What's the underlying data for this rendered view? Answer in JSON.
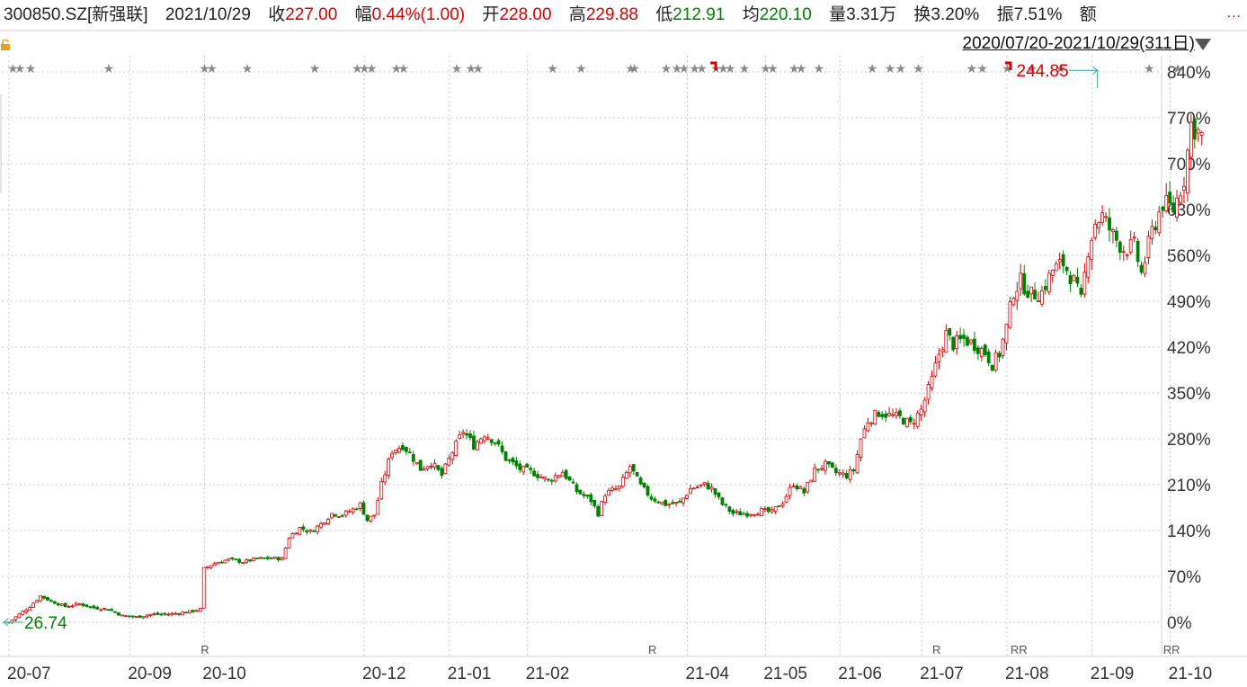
{
  "header": {
    "code": "300850.SZ[新强联]",
    "date": "2021/10/29",
    "close_label": "收",
    "close_value": "227.00",
    "change_label": "幅",
    "change_value": "0.44%(1.00)",
    "open_label": "开",
    "open_value": "228.00",
    "high_label": "高",
    "high_value": "229.88",
    "low_label": "低",
    "low_value": "212.91",
    "avg_label": "均",
    "avg_value": "220.10",
    "volume_label": "量",
    "volume_value": "3.31万",
    "turnover_label": "换",
    "turnover_value": "3.20%",
    "amplitude_label": "振",
    "amplitude_value": "7.51%",
    "amount_label": "额",
    "range": "2020/07/20-2021/10/29(311日)",
    "more_dots": "..."
  },
  "colors": {
    "up": "#d40000",
    "down": "#008000",
    "grid": "#c8c8c8",
    "star": "#8a8a8a"
  },
  "chart_data": {
    "type": "candlestick",
    "y_axis_labels": [
      "840%",
      "770%",
      "700%",
      "630%",
      "560%",
      "490%",
      "420%",
      "350%",
      "280%",
      "210%",
      "140%",
      "70%",
      "0%"
    ],
    "y_axis_values": [
      840,
      770,
      700,
      630,
      560,
      490,
      420,
      350,
      280,
      210,
      140,
      70,
      0
    ],
    "ylim": [
      -30,
      840
    ],
    "x_tick_labels": [
      "20-07",
      "20-09",
      "20-10",
      "20-12",
      "21-01",
      "21-02",
      "21-04",
      "21-05",
      "21-06",
      "21-07",
      "21-08",
      "21-09",
      "21-10"
    ],
    "x_tick_sessions": [
      0,
      34,
      55,
      100,
      124,
      146,
      191,
      213,
      234,
      257,
      281,
      305,
      327
    ],
    "sessions": 311,
    "max_annotation": {
      "label": "244.85",
      "session": 307,
      "pct": 815
    },
    "min_annotation": {
      "label": "26.74",
      "session": 0,
      "pct": 0
    },
    "r_markers": [
      "R",
      "R",
      "R",
      "RR",
      "RR"
    ],
    "r_marker_sessions": [
      55,
      181,
      261,
      283,
      326
    ],
    "star_sessions": [
      0,
      2,
      5,
      27,
      54,
      56,
      66,
      85,
      97,
      99,
      101,
      108,
      110,
      125,
      129,
      131,
      152,
      160,
      174,
      175,
      184,
      187,
      189,
      192,
      194,
      198,
      200,
      202,
      206,
      212,
      214,
      220,
      222,
      227,
      242,
      247,
      250,
      255,
      270,
      273,
      280,
      287,
      295,
      320,
      328
    ],
    "flag_sessions": [
      198,
      281
    ],
    "close_pct_path": [
      [
        0,
        0
      ],
      [
        3,
        12
      ],
      [
        6,
        24
      ],
      [
        9,
        40
      ],
      [
        12,
        32
      ],
      [
        16,
        24
      ],
      [
        20,
        28
      ],
      [
        24,
        22
      ],
      [
        28,
        20
      ],
      [
        32,
        10
      ],
      [
        36,
        8
      ],
      [
        40,
        12
      ],
      [
        44,
        12
      ],
      [
        48,
        14
      ],
      [
        51,
        16
      ],
      [
        54,
        20
      ],
      [
        55,
        82
      ],
      [
        58,
        90
      ],
      [
        62,
        96
      ],
      [
        66,
        92
      ],
      [
        70,
        97
      ],
      [
        74,
        98
      ],
      [
        77,
        97
      ],
      [
        79,
        130
      ],
      [
        82,
        144
      ],
      [
        85,
        138
      ],
      [
        88,
        150
      ],
      [
        91,
        166
      ],
      [
        94,
        164
      ],
      [
        97,
        172
      ],
      [
        99,
        180
      ],
      [
        101,
        156
      ],
      [
        103,
        164
      ],
      [
        105,
        210
      ],
      [
        108,
        262
      ],
      [
        111,
        270
      ],
      [
        113,
        258
      ],
      [
        116,
        234
      ],
      [
        119,
        244
      ],
      [
        122,
        224
      ],
      [
        125,
        260
      ],
      [
        128,
        292
      ],
      [
        131,
        270
      ],
      [
        134,
        288
      ],
      [
        137,
        276
      ],
      [
        140,
        250
      ],
      [
        144,
        234
      ],
      [
        148,
        228
      ],
      [
        152,
        216
      ],
      [
        156,
        230
      ],
      [
        160,
        200
      ],
      [
        164,
        186
      ],
      [
        166,
        166
      ],
      [
        168,
        196
      ],
      [
        172,
        206
      ],
      [
        175,
        238
      ],
      [
        178,
        208
      ],
      [
        181,
        190
      ],
      [
        185,
        180
      ],
      [
        189,
        182
      ],
      [
        192,
        204
      ],
      [
        196,
        210
      ],
      [
        198,
        204
      ],
      [
        201,
        180
      ],
      [
        204,
        166
      ],
      [
        208,
        166
      ],
      [
        212,
        170
      ],
      [
        215,
        168
      ],
      [
        218,
        184
      ],
      [
        221,
        212
      ],
      [
        224,
        198
      ],
      [
        227,
        232
      ],
      [
        230,
        240
      ],
      [
        233,
        228
      ],
      [
        236,
        224
      ],
      [
        238,
        232
      ],
      [
        240,
        280
      ],
      [
        242,
        308
      ],
      [
        245,
        320
      ],
      [
        248,
        316
      ],
      [
        251,
        312
      ],
      [
        254,
        302
      ],
      [
        257,
        324
      ],
      [
        260,
        370
      ],
      [
        262,
        410
      ],
      [
        264,
        440
      ],
      [
        266,
        424
      ],
      [
        269,
        432
      ],
      [
        272,
        424
      ],
      [
        275,
        412
      ],
      [
        277,
        394
      ],
      [
        279,
        410
      ],
      [
        281,
        450
      ],
      [
        283,
        506
      ],
      [
        285,
        520
      ],
      [
        288,
        500
      ],
      [
        291,
        504
      ],
      [
        294,
        538
      ],
      [
        297,
        548
      ],
      [
        300,
        520
      ],
      [
        302,
        490
      ],
      [
        304,
        570
      ],
      [
        306,
        610
      ],
      [
        308,
        620
      ],
      [
        311,
        590
      ],
      [
        314,
        570
      ],
      [
        317,
        574
      ],
      [
        319,
        532
      ],
      [
        322,
        596
      ],
      [
        325,
        640
      ],
      [
        328,
        630
      ],
      [
        331,
        678
      ],
      [
        333,
        760
      ],
      [
        336,
        742
      ]
    ]
  }
}
